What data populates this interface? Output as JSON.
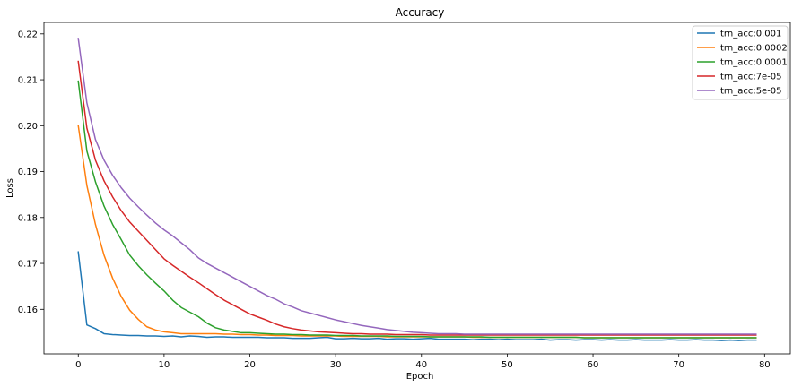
{
  "chart_data": {
    "type": "line",
    "title": "Accuracy",
    "xlabel": "Epoch",
    "ylabel": "Loss",
    "xlim": [
      -4,
      83
    ],
    "ylim": [
      0.1503,
      0.2225
    ],
    "xticks": [
      0,
      10,
      20,
      30,
      40,
      50,
      60,
      70,
      80
    ],
    "yticks": [
      0.16,
      0.17,
      0.18,
      0.19,
      0.2,
      0.21,
      0.22
    ],
    "ytick_labels": [
      "0.16",
      "0.17",
      "0.18",
      "0.19",
      "0.20",
      "0.21",
      "0.22"
    ],
    "grid": false,
    "legend_position": "top-right",
    "x": [
      0,
      1,
      2,
      3,
      4,
      5,
      6,
      7,
      8,
      9,
      10,
      11,
      12,
      13,
      14,
      15,
      16,
      17,
      18,
      19,
      20,
      21,
      22,
      23,
      24,
      25,
      26,
      27,
      28,
      29,
      30,
      31,
      32,
      33,
      34,
      35,
      36,
      37,
      38,
      39,
      40,
      41,
      42,
      43,
      44,
      45,
      46,
      47,
      48,
      49,
      50,
      51,
      52,
      53,
      54,
      55,
      56,
      57,
      58,
      59,
      60,
      61,
      62,
      63,
      64,
      65,
      66,
      67,
      68,
      69,
      70,
      71,
      72,
      73,
      74,
      75,
      76,
      77,
      78,
      79
    ],
    "series": [
      {
        "name": "trn_acc:0.001",
        "color": "#1f77b4",
        "values": [
          0.1725,
          0.1566,
          0.1558,
          0.1547,
          0.1545,
          0.1544,
          0.1543,
          0.1543,
          0.1542,
          0.1542,
          0.1541,
          0.1542,
          0.154,
          0.1542,
          0.1541,
          0.1539,
          0.154,
          0.154,
          0.1539,
          0.1539,
          0.1539,
          0.1539,
          0.1538,
          0.1538,
          0.1538,
          0.1537,
          0.1537,
          0.1537,
          0.1538,
          0.1539,
          0.1536,
          0.1536,
          0.1537,
          0.1536,
          0.1536,
          0.1537,
          0.1535,
          0.1536,
          0.1536,
          0.1535,
          0.1536,
          0.1537,
          0.1535,
          0.1535,
          0.1535,
          0.1535,
          0.1534,
          0.1535,
          0.1535,
          0.1534,
          0.1535,
          0.1534,
          0.1534,
          0.1534,
          0.1535,
          0.1533,
          0.1534,
          0.1534,
          0.1533,
          0.1534,
          0.1534,
          0.1533,
          0.1534,
          0.1533,
          0.1533,
          0.1534,
          0.1533,
          0.1533,
          0.1533,
          0.1534,
          0.1533,
          0.1533,
          0.1534,
          0.1533,
          0.1533,
          0.1532,
          0.1533,
          0.1532,
          0.1533,
          0.1533
        ]
      },
      {
        "name": "trn_acc:0.0002",
        "color": "#ff7f0e",
        "values": [
          0.2,
          0.187,
          0.1785,
          0.1718,
          0.1668,
          0.1628,
          0.1598,
          0.1578,
          0.1562,
          0.1555,
          0.1551,
          0.1549,
          0.1547,
          0.1547,
          0.1547,
          0.1547,
          0.1547,
          0.1546,
          0.1546,
          0.1545,
          0.1545,
          0.1544,
          0.1544,
          0.1543,
          0.1543,
          0.1543,
          0.1542,
          0.1542,
          0.1542,
          0.1542,
          0.1542,
          0.1541,
          0.1541,
          0.1541,
          0.1541,
          0.1541,
          0.154,
          0.154,
          0.154,
          0.154,
          0.154,
          0.154,
          0.154,
          0.154,
          0.154,
          0.154,
          0.1539,
          0.1539,
          0.1539,
          0.1539,
          0.1539,
          0.1539,
          0.1539,
          0.1539,
          0.1539,
          0.1539,
          0.1539,
          0.1539,
          0.1539,
          0.1538,
          0.1538,
          0.1538,
          0.1538,
          0.1538,
          0.1538,
          0.1538,
          0.1538,
          0.1538,
          0.1538,
          0.1538,
          0.1538,
          0.1538,
          0.1538,
          0.1538,
          0.1538,
          0.1538,
          0.1538,
          0.1538,
          0.1538,
          0.1538
        ]
      },
      {
        "name": "trn_acc:0.0001",
        "color": "#2ca02c",
        "values": [
          0.2097,
          0.1945,
          0.1878,
          0.1825,
          0.1785,
          0.1752,
          0.1718,
          0.1695,
          0.1675,
          0.1657,
          0.164,
          0.162,
          0.1604,
          0.1594,
          0.1584,
          0.157,
          0.156,
          0.1555,
          0.1552,
          0.1549,
          0.1549,
          0.1548,
          0.1547,
          0.1546,
          0.1546,
          0.1545,
          0.1545,
          0.1544,
          0.1544,
          0.1544,
          0.1543,
          0.1543,
          0.1543,
          0.1542,
          0.1542,
          0.1542,
          0.1542,
          0.1541,
          0.1541,
          0.1541,
          0.1541,
          0.154,
          0.154,
          0.154,
          0.154,
          0.154,
          0.154,
          0.154,
          0.1539,
          0.1539,
          0.1539,
          0.1539,
          0.1539,
          0.1539,
          0.1539,
          0.1539,
          0.1539,
          0.1539,
          0.1539,
          0.1538,
          0.1538,
          0.1538,
          0.1538,
          0.1538,
          0.1538,
          0.1538,
          0.1538,
          0.1538,
          0.1538,
          0.1538,
          0.1538,
          0.1538,
          0.1538,
          0.1538,
          0.1538,
          0.1538,
          0.1538,
          0.1538,
          0.1538,
          0.1538
        ]
      },
      {
        "name": "trn_acc:7e-05",
        "color": "#d62728",
        "values": [
          0.214,
          0.1995,
          0.1925,
          0.188,
          0.1845,
          0.1815,
          0.179,
          0.177,
          0.175,
          0.173,
          0.171,
          0.1696,
          0.1683,
          0.167,
          0.1658,
          0.1645,
          0.1632,
          0.162,
          0.161,
          0.16,
          0.159,
          0.1583,
          0.1576,
          0.1568,
          0.1562,
          0.1558,
          0.1555,
          0.1553,
          0.1551,
          0.155,
          0.1549,
          0.1548,
          0.1547,
          0.1547,
          0.1546,
          0.1546,
          0.1546,
          0.1545,
          0.1545,
          0.1545,
          0.1545,
          0.1544,
          0.1544,
          0.1544,
          0.1544,
          0.1544,
          0.1544,
          0.1544,
          0.1544,
          0.1544,
          0.1544,
          0.1544,
          0.1544,
          0.1544,
          0.1544,
          0.1544,
          0.1544,
          0.1544,
          0.1544,
          0.1544,
          0.1544,
          0.1544,
          0.1544,
          0.1544,
          0.1544,
          0.1544,
          0.1544,
          0.1544,
          0.1544,
          0.1544,
          0.1544,
          0.1544,
          0.1544,
          0.1544,
          0.1544,
          0.1544,
          0.1544,
          0.1544,
          0.1544,
          0.1544
        ]
      },
      {
        "name": "trn_acc:5e-05",
        "color": "#9467bd",
        "values": [
          0.219,
          0.205,
          0.197,
          0.1925,
          0.1892,
          0.1865,
          0.1842,
          0.1823,
          0.1805,
          0.1788,
          0.1773,
          0.176,
          0.1745,
          0.173,
          0.1712,
          0.17,
          0.169,
          0.168,
          0.167,
          0.166,
          0.165,
          0.164,
          0.163,
          0.1622,
          0.1612,
          0.1605,
          0.1597,
          0.1592,
          0.1587,
          0.1582,
          0.1577,
          0.1573,
          0.1569,
          0.1565,
          0.1562,
          0.1559,
          0.1556,
          0.1554,
          0.1552,
          0.155,
          0.1549,
          0.1548,
          0.1547,
          0.1547,
          0.1547,
          0.1546,
          0.1546,
          0.1546,
          0.1546,
          0.1546,
          0.1546,
          0.1546,
          0.1546,
          0.1546,
          0.1546,
          0.1546,
          0.1546,
          0.1546,
          0.1546,
          0.1546,
          0.1546,
          0.1546,
          0.1546,
          0.1546,
          0.1546,
          0.1546,
          0.1546,
          0.1546,
          0.1546,
          0.1546,
          0.1546,
          0.1546,
          0.1546,
          0.1546,
          0.1546,
          0.1546,
          0.1546,
          0.1546,
          0.1546,
          0.1546
        ]
      }
    ]
  }
}
